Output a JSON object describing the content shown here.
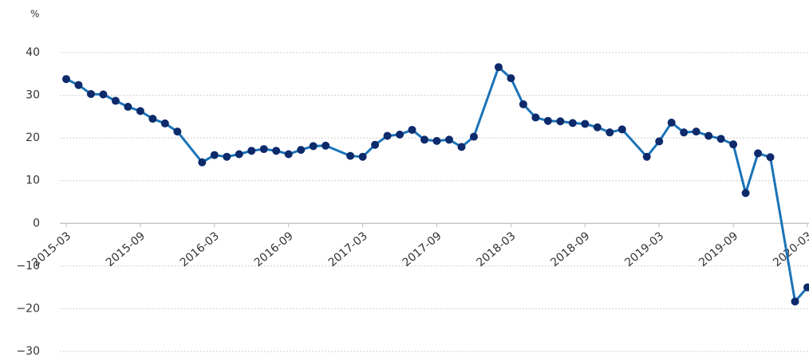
{
  "chart_data": {
    "type": "line",
    "y_label": "%",
    "x": [
      "2015-03",
      "2015-04",
      "2015-05",
      "2015-06",
      "2015-07",
      "2015-08",
      "2015-09",
      "2015-10",
      "2015-11",
      "2015-12",
      "2016-02",
      "2016-03",
      "2016-04",
      "2016-05",
      "2016-06",
      "2016-07",
      "2016-08",
      "2016-09",
      "2016-10",
      "2016-11",
      "2016-12",
      "2017-02",
      "2017-03",
      "2017-04",
      "2017-05",
      "2017-06",
      "2017-07",
      "2017-08",
      "2017-09",
      "2017-10",
      "2017-11",
      "2017-12",
      "2018-02",
      "2018-03",
      "2018-04",
      "2018-05",
      "2018-06",
      "2018-07",
      "2018-08",
      "2018-09",
      "2018-10",
      "2018-11",
      "2018-12",
      "2019-02",
      "2019-03",
      "2019-04",
      "2019-05",
      "2019-06",
      "2019-07",
      "2019-08",
      "2019-09",
      "2019-10",
      "2019-11",
      "2019-12",
      "2020-02",
      "2020-03"
    ],
    "series": [
      {
        "name": "%",
        "color": "#1a73b8",
        "marker_color": "#0d2a6b",
        "values": [
          33.8,
          32.4,
          30.3,
          30.2,
          28.7,
          27.3,
          26.3,
          24.5,
          23.4,
          21.5,
          14.3,
          16.0,
          15.6,
          16.2,
          17.0,
          17.4,
          17.0,
          16.2,
          17.2,
          18.1,
          18.2,
          15.8,
          15.6,
          18.4,
          20.5,
          20.8,
          21.9,
          19.6,
          19.3,
          19.6,
          17.9,
          20.3,
          36.6,
          34.0,
          27.9,
          24.8,
          24.0,
          23.9,
          23.5,
          23.3,
          22.5,
          21.3,
          22.0,
          15.6,
          19.2,
          23.6,
          21.3,
          21.5,
          20.5,
          19.8,
          18.5,
          7.1,
          16.4,
          15.5,
          -18.3,
          -15.0
        ]
      }
    ],
    "xlim": [
      "2015-03",
      "2020-03"
    ],
    "xticks": [
      "2015-03",
      "2015-09",
      "2016-03",
      "2016-09",
      "2017-03",
      "2017-09",
      "2018-03",
      "2018-09",
      "2019-03",
      "2019-09",
      "2020-03"
    ],
    "ylim": [
      -30,
      40
    ],
    "yticks": [
      {
        "value": -30,
        "label": "−30"
      },
      {
        "value": -20,
        "label": "−20"
      },
      {
        "value": -10,
        "label": "−10"
      },
      0,
      10,
      20,
      30,
      40
    ],
    "grid": true
  }
}
